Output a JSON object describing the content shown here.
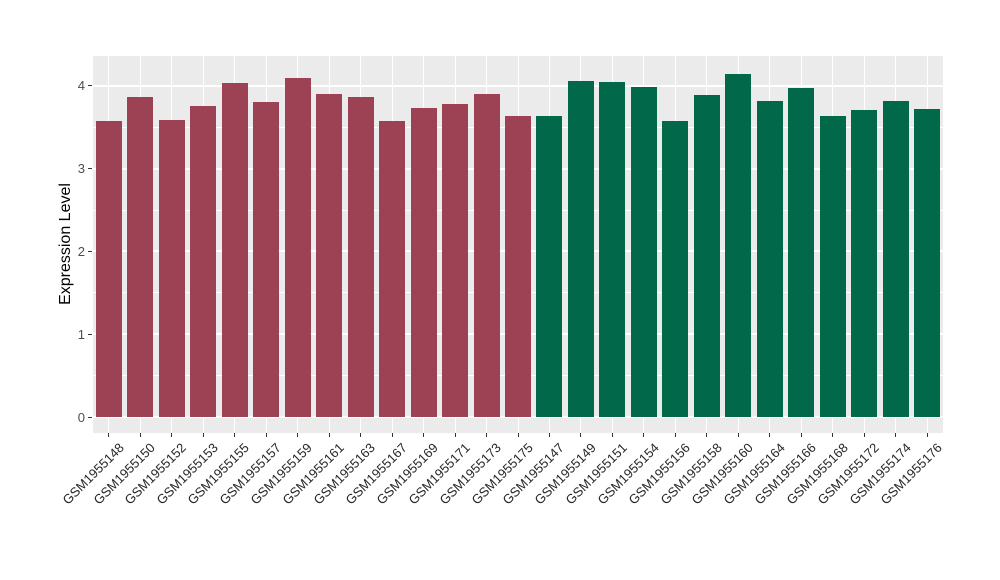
{
  "chart_data": {
    "type": "bar",
    "title": "",
    "xlabel": "",
    "ylabel": "Expression Level",
    "ylim": [
      0,
      4.35
    ],
    "yticks": [
      0,
      1,
      2,
      3,
      4
    ],
    "minor_yticks": [
      0.5,
      1.5,
      2.5,
      3.5
    ],
    "legend": "none",
    "grid": {
      "show": true,
      "color": "#ffffff",
      "panel_background": "#ebebeb"
    },
    "style": {
      "axis_tick_color": "#333333",
      "y_tick_text_color": "#4d4d4d",
      "x_tick_text_color": "#262626",
      "page_background": "#ffffff"
    },
    "groups": [
      {
        "name": "left-group",
        "color": "#9c4254"
      },
      {
        "name": "right-group",
        "color": "#016849"
      }
    ],
    "bars": [
      {
        "label": "GSM1955148",
        "value": 3.57,
        "group": 0
      },
      {
        "label": "GSM1955150",
        "value": 3.87,
        "group": 0
      },
      {
        "label": "GSM1955152",
        "value": 3.59,
        "group": 0
      },
      {
        "label": "GSM1955153",
        "value": 3.76,
        "group": 0
      },
      {
        "label": "GSM1955155",
        "value": 4.03,
        "group": 0
      },
      {
        "label": "GSM1955157",
        "value": 3.8,
        "group": 0
      },
      {
        "label": "GSM1955159",
        "value": 4.09,
        "group": 0
      },
      {
        "label": "GSM1955161",
        "value": 3.9,
        "group": 0
      },
      {
        "label": "GSM1955163",
        "value": 3.86,
        "group": 0
      },
      {
        "label": "GSM1955167",
        "value": 3.58,
        "group": 0
      },
      {
        "label": "GSM1955169",
        "value": 3.73,
        "group": 0
      },
      {
        "label": "GSM1955171",
        "value": 3.78,
        "group": 0
      },
      {
        "label": "GSM1955173",
        "value": 3.9,
        "group": 0
      },
      {
        "label": "GSM1955175",
        "value": 3.64,
        "group": 0
      },
      {
        "label": "GSM1955147",
        "value": 3.63,
        "group": 1
      },
      {
        "label": "GSM1955149",
        "value": 4.06,
        "group": 1
      },
      {
        "label": "GSM1955151",
        "value": 4.04,
        "group": 1
      },
      {
        "label": "GSM1955154",
        "value": 3.98,
        "group": 1
      },
      {
        "label": "GSM1955156",
        "value": 3.58,
        "group": 1
      },
      {
        "label": "GSM1955158",
        "value": 3.89,
        "group": 1
      },
      {
        "label": "GSM1955160",
        "value": 4.14,
        "group": 1
      },
      {
        "label": "GSM1955164",
        "value": 3.82,
        "group": 1
      },
      {
        "label": "GSM1955166",
        "value": 3.97,
        "group": 1
      },
      {
        "label": "GSM1955168",
        "value": 3.63,
        "group": 1
      },
      {
        "label": "GSM1955172",
        "value": 3.71,
        "group": 1
      },
      {
        "label": "GSM1955174",
        "value": 3.82,
        "group": 1
      },
      {
        "label": "GSM1955176",
        "value": 3.72,
        "group": 1
      }
    ]
  }
}
